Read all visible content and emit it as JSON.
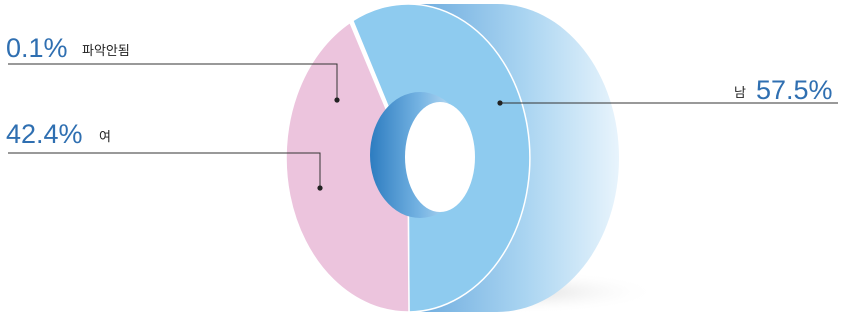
{
  "chart_data": {
    "type": "pie",
    "variant": "donut-3d",
    "title": "",
    "slices": [
      {
        "label": "남",
        "value": 57.5,
        "display": "57.5%",
        "color": "#8ecbef"
      },
      {
        "label": "여",
        "value": 42.4,
        "display": "42.4%",
        "color": "#ecc4dd"
      },
      {
        "label": "파악안됨",
        "value": 0.1,
        "display": "0.1%",
        "color": "#ffffff"
      }
    ],
    "legend": "none",
    "label_color": "#2f6fb1"
  }
}
